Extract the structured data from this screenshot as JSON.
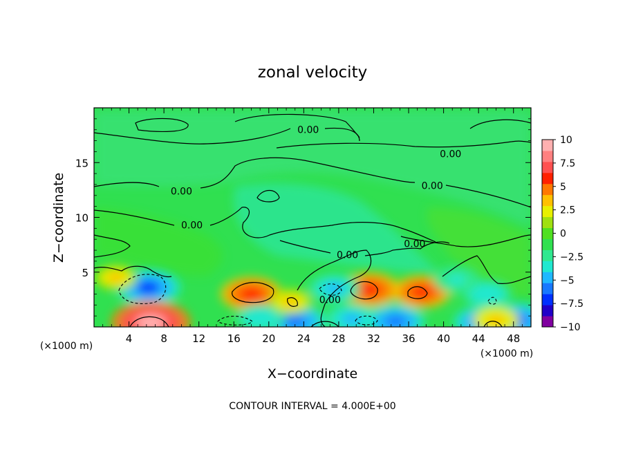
{
  "chart_data": {
    "type": "heatmap",
    "title": "zonal velocity",
    "xlabel": "X−coordinate",
    "ylabel": "Z−coordinate",
    "x_unit_left": "(×1000 m)",
    "x_unit_right": "(×1000 m)",
    "footer": "CONTOUR INTERVAL = 4.000E+00",
    "xlim": [
      0,
      50
    ],
    "ylim": [
      0,
      20
    ],
    "x_ticks": [
      4,
      8,
      12,
      16,
      20,
      24,
      28,
      32,
      36,
      40,
      44,
      48
    ],
    "y_ticks": [
      5,
      10,
      15
    ],
    "colorbar": {
      "ticks": [
        "10",
        "7.5",
        "5",
        "2.5",
        "0",
        "−2.5",
        "−5",
        "−7.5",
        "−10"
      ],
      "range": [
        -10,
        10
      ],
      "colors": [
        "#8000a0",
        "#2000c8",
        "#0030ff",
        "#1878ff",
        "#20b8ff",
        "#20e8d0",
        "#30e890",
        "#30e050",
        "#50e020",
        "#a0e010",
        "#e8f000",
        "#ffc000",
        "#ff7800",
        "#ff2000",
        "#ff5050",
        "#ff8080",
        "#ffb0b0"
      ]
    },
    "contour_labels": [
      {
        "text": "0.00",
        "x": 24.5,
        "y": 18.0
      },
      {
        "text": "0.00",
        "x": 40.8,
        "y": 15.8
      },
      {
        "text": "0.00",
        "x": 38.7,
        "y": 12.9
      },
      {
        "text": "0.00",
        "x": 10.0,
        "y": 12.4
      },
      {
        "text": "0.00",
        "x": 11.2,
        "y": 9.3
      },
      {
        "text": "0.00",
        "x": 36.7,
        "y": 7.6
      },
      {
        "text": "0.00",
        "x": 29.0,
        "y": 6.6
      },
      {
        "text": "0.00",
        "x": 27.0,
        "y": 2.5
      }
    ],
    "features": [
      {
        "type": "min",
        "x": 6.2,
        "y": 3.6,
        "value": -6.5
      },
      {
        "type": "max",
        "x": 6.5,
        "y": 0.4,
        "value": 9.0
      },
      {
        "type": "max",
        "x": 18.0,
        "y": 3.0,
        "value": 6.0
      },
      {
        "type": "max",
        "x": 31.5,
        "y": 3.4,
        "value": 6.0
      },
      {
        "type": "max",
        "x": 37.5,
        "y": 3.2,
        "value": 5.5
      },
      {
        "type": "min",
        "x": 23.0,
        "y": 0.5,
        "value": -6.0
      },
      {
        "type": "min",
        "x": 29.5,
        "y": 0.7,
        "value": -5.0
      },
      {
        "type": "min",
        "x": 34.5,
        "y": 0.5,
        "value": -5.5
      },
      {
        "type": "min",
        "x": 44.5,
        "y": 0.4,
        "value": -5.5
      },
      {
        "type": "min",
        "x": 48.5,
        "y": 0.6,
        "value": -6.0
      },
      {
        "type": "min",
        "x": 19.0,
        "y": 0.8,
        "value": -4.0
      },
      {
        "type": "min",
        "x": 27.5,
        "y": 3.5,
        "value": -4.5
      },
      {
        "type": "min",
        "x": 45.0,
        "y": 3.0,
        "value": -4.0
      },
      {
        "type": "min",
        "x": 41.5,
        "y": 4.3,
        "value": -3.5
      },
      {
        "type": "max",
        "x": 46.0,
        "y": 0.6,
        "value": 3.5
      },
      {
        "type": "max",
        "x": 22.5,
        "y": 2.3,
        "value": 3.0
      },
      {
        "type": "max",
        "x": 2.5,
        "y": 4.5,
        "value": 3.0
      }
    ]
  }
}
